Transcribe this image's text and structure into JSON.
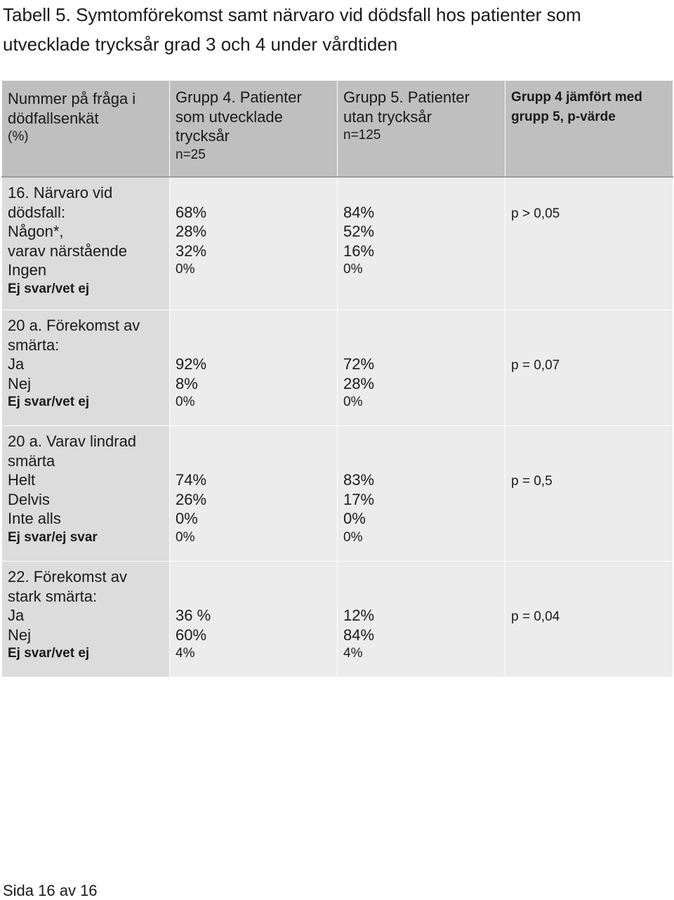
{
  "title": "Tabell 5. Symtomförekomst samt närvaro vid dödsfall hos patienter som utvecklade trycksår grad 3 och 4 under vårdtiden",
  "header": {
    "col0": {
      "l1": "Nummer på fråga i",
      "l2": "dödfallsenkät",
      "l3": "(%)"
    },
    "col1": {
      "l1": "Grupp 4. Patienter",
      "l2": "som utvecklade",
      "l3": "trycksår",
      "l4": "n=25"
    },
    "col2": {
      "l1": "Grupp 5. Patienter",
      "l2": "utan trycksår",
      "l3": "n=125"
    },
    "col3": {
      "l1": "Grupp 4 jämfört med",
      "l2": "grupp 5, p-värde"
    }
  },
  "rows": [
    {
      "q1": "16. Närvaro vid",
      "q2": "dödsfall:",
      "opts": [
        "Någon*,",
        "varav närstående",
        "Ingen"
      ],
      "last": "Ej svar/vet ej",
      "g4": [
        "68%",
        "28%",
        "32%",
        "0%"
      ],
      "g5": [
        "84%",
        "52%",
        "16%",
        "0%"
      ],
      "p": "p > 0,05"
    },
    {
      "q1": "20 a. Förekomst av",
      "q2": "smärta:",
      "opts": [
        "Ja",
        "Nej"
      ],
      "last": "Ej svar/vet ej",
      "g4": [
        "92%",
        "8%",
        "0%"
      ],
      "g5": [
        "72%",
        "28%",
        "0%"
      ],
      "p": "p = 0,07"
    },
    {
      "q1": "20 a. Varav lindrad",
      "q2": "smärta",
      "opts": [
        "Helt",
        "Delvis",
        "Inte alls"
      ],
      "last": "Ej svar/ej svar",
      "g4": [
        "74%",
        "26%",
        "0%",
        "0%"
      ],
      "g5": [
        "83%",
        "17%",
        "0%",
        "0%"
      ],
      "p": "p = 0,5"
    },
    {
      "q1": "22. Förekomst av",
      "q2": "stark smärta:",
      "opts": [
        "Ja",
        "Nej"
      ],
      "last": "Ej svar/vet ej",
      "g4": [
        "36 %",
        "60%",
        "4%"
      ],
      "g5": [
        "12%",
        "84%",
        "4%"
      ],
      "p": "p = 0,04"
    }
  ],
  "footer": "Sida 16 av 16"
}
